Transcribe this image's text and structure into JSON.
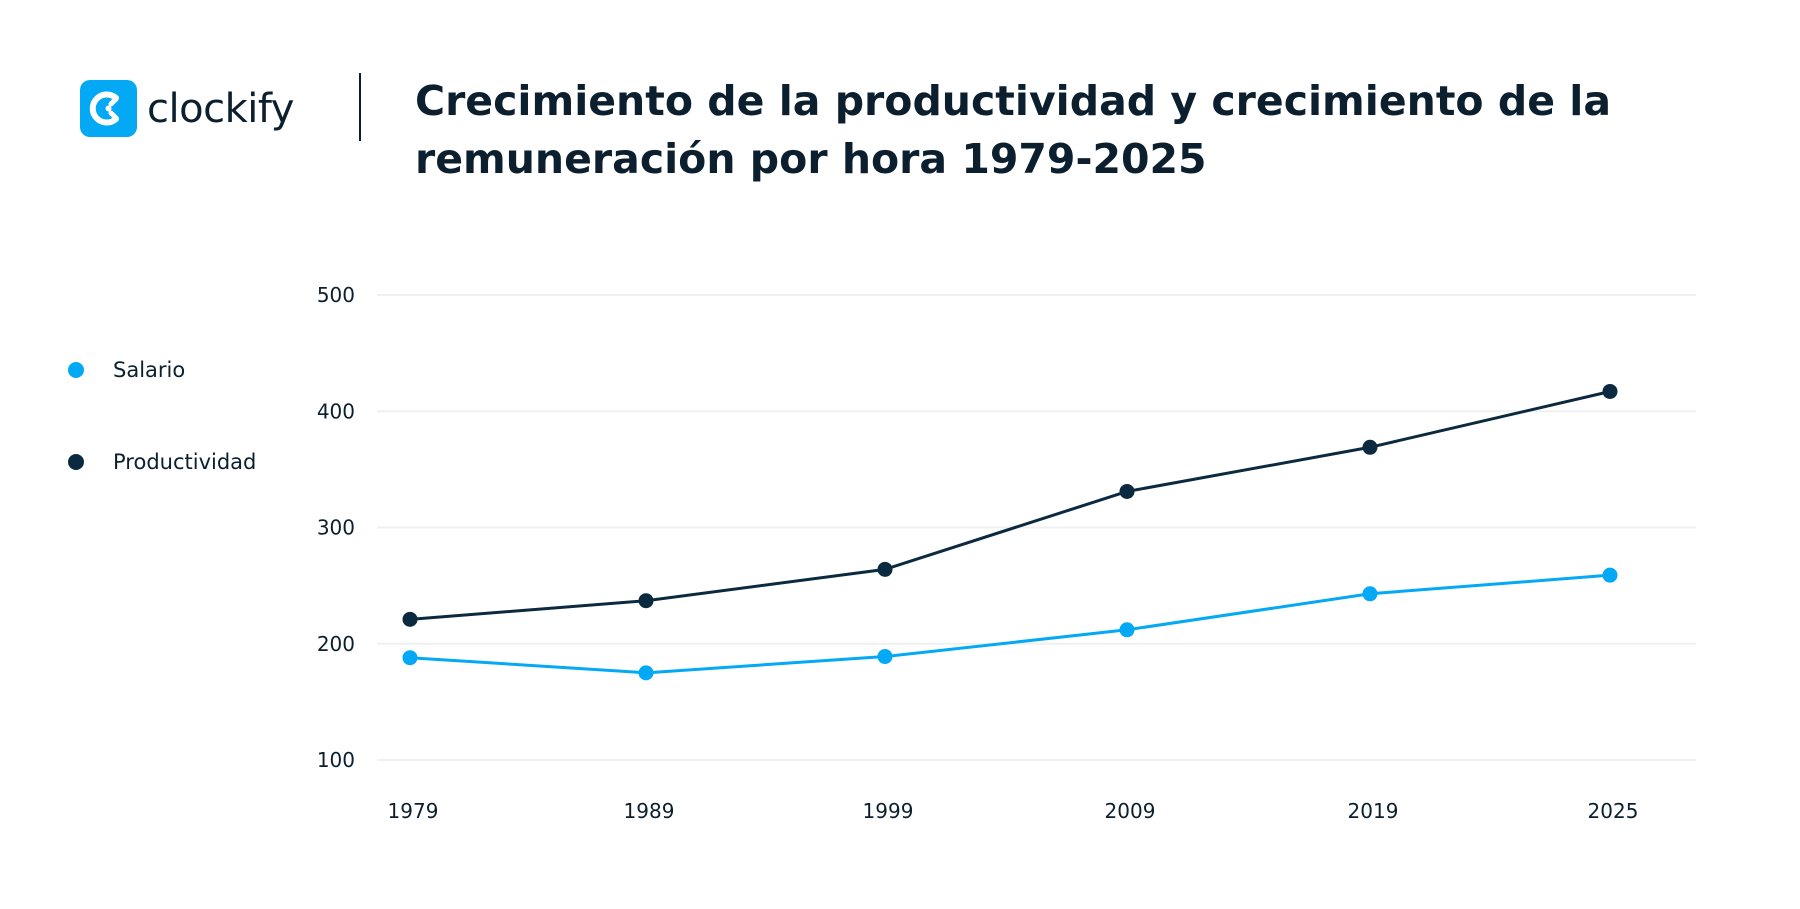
{
  "brand": {
    "name": "clockify",
    "color": "#03a9f4"
  },
  "chart_data": {
    "type": "line",
    "title": "Crecimiento de la productividad y crecimiento de la remuneración por hora 1979-2025",
    "categories": [
      "1979",
      "1989",
      "1999",
      "2009",
      "2019",
      "2025"
    ],
    "series": [
      {
        "name": "Salario",
        "color": "#03a9f4",
        "values": [
          188,
          175,
          189,
          212,
          243,
          259
        ]
      },
      {
        "name": "Productividad",
        "color": "#0b2a3f",
        "values": [
          221,
          237,
          264,
          331,
          369,
          417
        ]
      }
    ],
    "yticks": [
      "100",
      "200",
      "300",
      "400",
      "500"
    ],
    "ylim": [
      100,
      500
    ],
    "grid": true,
    "legend": "left"
  }
}
